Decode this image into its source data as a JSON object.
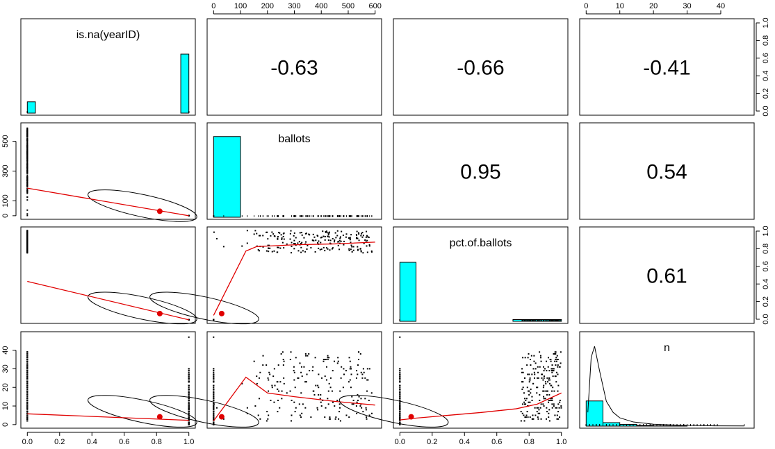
{
  "chart_data": {
    "type": "scatter",
    "title": "",
    "variables": [
      "is.na(yearID)",
      "ballots",
      "pct.of.ballots",
      "n"
    ],
    "correlations": [
      {
        "row": 0,
        "col": 1,
        "label": "-0.63"
      },
      {
        "row": 0,
        "col": 2,
        "label": "-0.66"
      },
      {
        "row": 0,
        "col": 3,
        "label": "-0.41"
      },
      {
        "row": 1,
        "col": 2,
        "label": "0.95"
      },
      {
        "row": 1,
        "col": 3,
        "label": "0.54"
      },
      {
        "row": 2,
        "col": 3,
        "label": "0.61"
      }
    ],
    "axes": {
      "is.na(yearID)": {
        "range": [
          0,
          1
        ],
        "ticks": [
          "0.0",
          "0.2",
          "0.4",
          "0.6",
          "0.8",
          "1.0"
        ]
      },
      "ballots": {
        "range": [
          0,
          600
        ],
        "ticks": [
          "0",
          "100",
          "200",
          "300",
          "400",
          "500",
          "600"
        ],
        "y_ticks": [
          "0",
          "100",
          "300",
          "500"
        ]
      },
      "pct.of.ballots": {
        "range": [
          0,
          1
        ],
        "ticks": [
          "0.0",
          "0.2",
          "0.4",
          "0.6",
          "0.8",
          "1.0"
        ]
      },
      "n": {
        "range": [
          0,
          48
        ],
        "ticks": [
          "0",
          "10",
          "20",
          "30",
          "40"
        ]
      }
    },
    "histograms": {
      "is.na(yearID)": {
        "bins": [
          [
            0.0,
            0.05,
            0.13
          ],
          [
            0.95,
            1.0,
            0.68
          ]
        ]
      },
      "ballots": {
        "bins": [
          [
            0,
            100,
            0.93
          ]
        ]
      },
      "pct.of.ballots": {
        "bins": [
          [
            0.0,
            0.1,
            0.68
          ],
          [
            0.7,
            0.8,
            0.02
          ],
          [
            0.8,
            0.9,
            0.02
          ],
          [
            0.9,
            1.0,
            0.02
          ]
        ]
      },
      "n": {
        "bins": [
          [
            0,
            5,
            0.29
          ],
          [
            5,
            10,
            0.04
          ],
          [
            10,
            15,
            0.02
          ],
          [
            15,
            20,
            0.008
          ],
          [
            20,
            25,
            0.003
          ],
          [
            25,
            30,
            0.002
          ]
        ],
        "density": [
          [
            0.5,
            0.05
          ],
          [
            1.5,
            0.25
          ],
          [
            2.5,
            0.29
          ],
          [
            4,
            0.2
          ],
          [
            6,
            0.09
          ],
          [
            8,
            0.05
          ],
          [
            10,
            0.03
          ],
          [
            14,
            0.015
          ],
          [
            20,
            0.007
          ],
          [
            28,
            0.003
          ],
          [
            38,
            0.001
          ],
          [
            47,
            0.0005
          ]
        ]
      }
    },
    "loess": {
      "ballots_vs_isna": [
        [
          0,
          185
        ],
        [
          1,
          0
        ]
      ],
      "pct_vs_isna": [
        [
          0,
          0.43
        ],
        [
          1,
          0.0
        ]
      ],
      "n_vs_isna": [
        [
          0,
          5.8
        ],
        [
          1,
          2.3
        ]
      ],
      "pct_vs_ballots": [
        [
          0,
          0.05
        ],
        [
          120,
          0.77
        ],
        [
          160,
          0.82
        ],
        [
          300,
          0.84
        ],
        [
          450,
          0.85
        ],
        [
          600,
          0.87
        ]
      ],
      "n_vs_ballots": [
        [
          0,
          2
        ],
        [
          120,
          25.5
        ],
        [
          200,
          17
        ],
        [
          300,
          15
        ],
        [
          450,
          12.5
        ],
        [
          600,
          10.5
        ]
      ],
      "n_vs_pct": [
        [
          0,
          2.5
        ],
        [
          0.1,
          3.5
        ],
        [
          0.3,
          5
        ],
        [
          0.5,
          6.5
        ],
        [
          0.72,
          8.5
        ],
        [
          0.85,
          11
        ],
        [
          1.0,
          17
        ]
      ]
    },
    "means": {
      "is.na(yearID)": 0.82,
      "ballots": 30,
      "pct.of.ballots": 0.07,
      "n": 4.2
    }
  }
}
